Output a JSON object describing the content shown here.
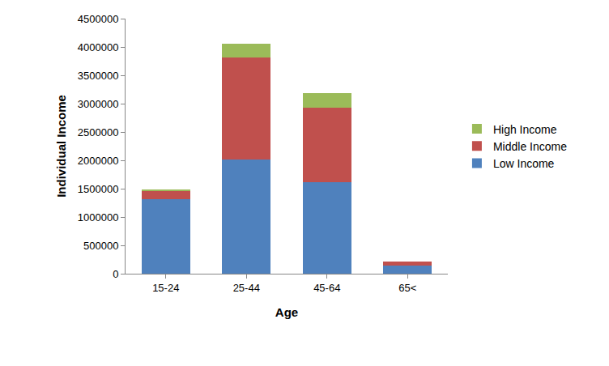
{
  "chart_data": {
    "type": "bar",
    "stacked": true,
    "grid": false,
    "legend": "right",
    "x_label": "Age",
    "y_label": "Individual Income",
    "categories": [
      "15-24",
      "25-44",
      "45-64",
      "65<"
    ],
    "series": [
      {
        "name": "Low Income",
        "color": "#4f81bd",
        "values": [
          1310000,
          2020000,
          1620000,
          140000
        ]
      },
      {
        "name": "Middle Income",
        "color": "#c0504d",
        "values": [
          150000,
          1800000,
          1310000,
          70000
        ]
      },
      {
        "name": "High Income",
        "color": "#9bbb59",
        "values": [
          20000,
          240000,
          250000,
          10000
        ]
      }
    ],
    "ylim": [
      0,
      4500000
    ],
    "yticks": [
      0,
      500000,
      1000000,
      1500000,
      2000000,
      2500000,
      3000000,
      3500000,
      4000000,
      4500000
    ]
  }
}
